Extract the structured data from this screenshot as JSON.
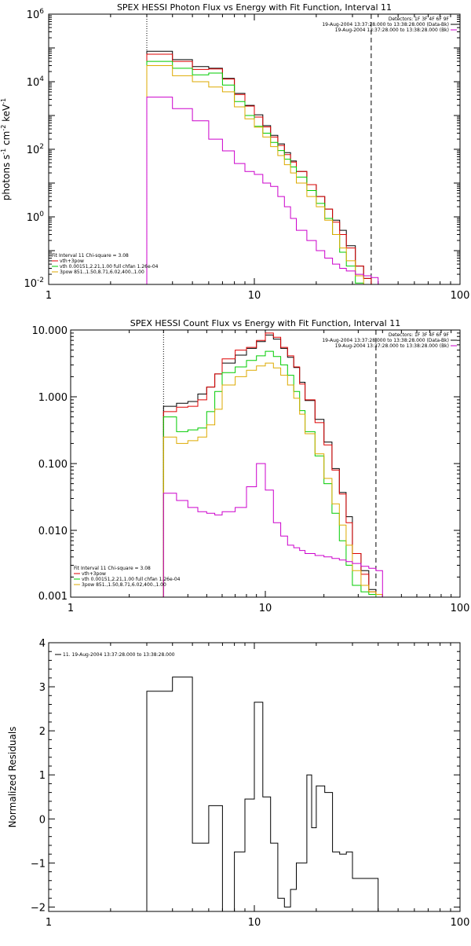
{
  "chart_data": [
    {
      "type": "line",
      "title": "SPEX HESSI Photon Flux vs Energy with Fit Function, Interval 11",
      "ylabel": "photons s",
      "ylabel_parts": [
        "photons s",
        "-1",
        " cm",
        "-2",
        " keV",
        "-1"
      ],
      "xscale": "log",
      "yscale": "log",
      "xlim": [
        1,
        100
      ],
      "ylim": [
        0.01,
        1000000
      ],
      "x_ticks": [
        "1",
        "10",
        "100"
      ],
      "y_ticks": [
        {
          "value": 0.01,
          "base": "10",
          "exp": "-2"
        },
        {
          "value": 1,
          "base": "10",
          "exp": "0"
        },
        {
          "value": 100,
          "base": "10",
          "exp": "2"
        },
        {
          "value": 10000,
          "base": "10",
          "exp": "4"
        },
        {
          "value": 1000000,
          "base": "10",
          "exp": "6"
        }
      ],
      "vlines": [
        {
          "x": 3.0,
          "style": "dotted"
        },
        {
          "x": 37.0,
          "style": "dashed"
        }
      ],
      "legend_top_right": [
        {
          "text": "Detectors: 1F 3F 4F 6F 9F",
          "color": "#000000"
        },
        {
          "text": "19-Aug-2004 13:37:28.000 to 13:38:28.000 (Data-Bk)",
          "color": "#000000"
        },
        {
          "text": "19-Aug-2004 13:37:28.000 to 13:38:28.000 (Bk)",
          "color": "#cc00cc"
        }
      ],
      "legend_bottom_left": [
        {
          "text": "Fit Interval 11    Chi-square = 3.08",
          "color": "#000000"
        },
        {
          "text": "vth+3pow",
          "color": "#dd0000"
        },
        {
          "text": "vth 0.00151,2.21,1.00  full chfan 1.26e-04",
          "color": "#00cc00"
        },
        {
          "text": "3pow 851.,1.50,8.71,6.02,400.,1.00",
          "color": "#ddaa00"
        }
      ],
      "bin_edges": [
        3.0,
        3.5,
        4.0,
        4.5,
        5.0,
        5.5,
        6.0,
        7.0,
        8.0,
        9.0,
        10.0,
        11.0,
        12.0,
        13.0,
        14.0,
        15.0,
        16.0,
        18.0,
        20.0,
        22.0,
        24.0,
        26.0,
        28.0,
        31.0,
        34.0,
        37.0,
        40.0
      ],
      "series": [
        {
          "name": "Data-Bk",
          "color": "#000000",
          "values": [
            80000,
            80000,
            45000,
            45000,
            28000,
            28000,
            25000,
            12500,
            4500,
            2000,
            1050,
            500,
            260,
            145,
            80,
            45,
            22,
            9,
            4,
            1.7,
            0.8,
            0.4,
            0.14,
            0.035,
            0.015,
            0.007
          ]
        },
        {
          "name": "vth+3pow",
          "color": "#dd0000",
          "values": [
            65000,
            65000,
            40000,
            40000,
            23000,
            23000,
            24000,
            12000,
            4200,
            1900,
            900,
            460,
            230,
            130,
            70,
            42,
            22,
            9,
            4,
            1.7,
            0.7,
            0.3,
            0.12,
            0.035,
            0.015,
            0.007
          ]
        },
        {
          "name": "vth",
          "color": "#00cc00",
          "values": [
            40000,
            40000,
            25000,
            25000,
            16000,
            16000,
            18000,
            8000,
            2600,
            1000,
            480,
            300,
            160,
            92,
            51,
            30,
            15,
            6,
            2.5,
            0.9,
            0.3,
            0.09,
            0.035,
            0.011,
            0.01,
            0.009
          ]
        },
        {
          "name": "3pow",
          "color": "#ddaa00",
          "values": [
            30000,
            30000,
            15000,
            15000,
            10000,
            10000,
            7000,
            5000,
            1800,
            800,
            450,
            230,
            120,
            65,
            35,
            20,
            10,
            4,
            2,
            0.8,
            0.3,
            0.12,
            0.05,
            0.018,
            0.009,
            0.005
          ]
        },
        {
          "name": "Bk",
          "color": "#cc00cc",
          "values": [
            3500,
            3500,
            1600,
            1600,
            700,
            700,
            200,
            90,
            38,
            22,
            18,
            10,
            8,
            4,
            2,
            0.9,
            0.4,
            0.2,
            0.1,
            0.06,
            0.04,
            0.03,
            0.025,
            0.02,
            0.018,
            0.016
          ]
        }
      ]
    },
    {
      "type": "line",
      "title": "SPEX HESSI Count Flux vs Energy with Fit Function, Interval 11",
      "ylabel": "",
      "xscale": "log",
      "yscale": "log",
      "xlim": [
        1,
        100
      ],
      "ylim": [
        0.001,
        10
      ],
      "x_ticks": [
        "1",
        "10",
        "100"
      ],
      "y_ticks": [
        {
          "value": 0.001,
          "label": "0.001"
        },
        {
          "value": 0.01,
          "label": "0.010"
        },
        {
          "value": 0.1,
          "label": "0.100"
        },
        {
          "value": 1,
          "label": "1.000"
        },
        {
          "value": 10,
          "label": "10.000"
        }
      ],
      "vlines": [
        {
          "x": 3.0,
          "style": "dotted"
        },
        {
          "x": 37.0,
          "style": "dashed"
        }
      ],
      "legend_top_right": [
        {
          "text": "Detectors: 1F 3F 4F 6F 9F",
          "color": "#000000"
        },
        {
          "text": "19-Aug-2004 13:37:28.000 to 13:38:28.000 (Data-Bk)",
          "color": "#000000"
        },
        {
          "text": "19-Aug-2004 13:37:28.000 to 13:38:28.000 (Bk)",
          "color": "#cc00cc"
        }
      ],
      "legend_bottom_left": [
        {
          "text": "Fit Interval 11    Chi-square = 3.08",
          "color": "#000000"
        },
        {
          "text": "vth+3pow",
          "color": "#dd0000"
        },
        {
          "text": "vth 0.00151,2.21,1.00  full chfan 1.26e-04",
          "color": "#00cc00"
        },
        {
          "text": "3pow 851.,1.50,8.71,6.02,400.,1.00",
          "color": "#ddaa00"
        }
      ],
      "bin_edges": [
        3.0,
        3.5,
        4.0,
        4.5,
        5.0,
        5.5,
        6.0,
        7.0,
        8.0,
        9.0,
        10.0,
        11.0,
        12.0,
        13.0,
        14.0,
        15.0,
        16.0,
        18.0,
        20.0,
        22.0,
        24.0,
        26.0,
        28.0,
        31.0,
        34.0,
        37.0,
        40.0
      ],
      "series": [
        {
          "name": "Data-Bk",
          "color": "#000000",
          "values": [
            0.72,
            0.8,
            0.85,
            1.1,
            1.4,
            2.2,
            3.2,
            4.2,
            5.3,
            6.7,
            8.4,
            7.3,
            5.3,
            3.9,
            2.75,
            1.65,
            0.88,
            0.46,
            0.21,
            0.084,
            0.037,
            0.016,
            0.0045,
            0.0025,
            0.0013,
            0.0011
          ]
        },
        {
          "name": "vth+3pow",
          "color": "#dd0000",
          "values": [
            0.6,
            0.7,
            0.72,
            0.9,
            1.4,
            2.2,
            3.7,
            5.0,
            5.5,
            7.0,
            9.0,
            7.8,
            5.5,
            4.1,
            2.8,
            1.55,
            0.9,
            0.41,
            0.19,
            0.08,
            0.035,
            0.013,
            0.0045,
            0.0022,
            0.0012,
            0.0011
          ]
        },
        {
          "name": "vth",
          "color": "#00cc00",
          "values": [
            0.5,
            0.3,
            0.32,
            0.34,
            0.6,
            1.2,
            2.3,
            2.8,
            3.5,
            4.1,
            4.8,
            4.0,
            3.0,
            2.1,
            1.2,
            0.62,
            0.3,
            0.13,
            0.05,
            0.018,
            0.007,
            0.003,
            0.0015,
            0.0012,
            0.0011,
            0.001
          ]
        },
        {
          "name": "3pow",
          "color": "#ddaa00",
          "values": [
            0.25,
            0.2,
            0.22,
            0.25,
            0.38,
            0.65,
            1.5,
            2.0,
            2.5,
            2.9,
            3.2,
            2.7,
            2.1,
            1.5,
            0.95,
            0.55,
            0.28,
            0.14,
            0.06,
            0.025,
            0.012,
            0.006,
            0.0025,
            0.0015,
            0.0012,
            0.0011
          ]
        },
        {
          "name": "Bk",
          "color": "#cc00cc",
          "values": [
            0.036,
            0.028,
            0.022,
            0.019,
            0.018,
            0.017,
            0.019,
            0.022,
            0.045,
            0.1,
            0.04,
            0.013,
            0.0082,
            0.006,
            0.0055,
            0.005,
            0.0045,
            0.0042,
            0.004,
            0.0038,
            0.0036,
            0.0034,
            0.0032,
            0.0029,
            0.0027,
            0.0025
          ]
        }
      ]
    },
    {
      "type": "line",
      "title": "",
      "ylabel": "Normalized Residuals",
      "xscale": "log",
      "yscale": "linear",
      "xlim": [
        1,
        100
      ],
      "ylim": [
        -2.1,
        4
      ],
      "x_ticks": [
        "1",
        "10",
        "100"
      ],
      "y_ticks": [
        {
          "value": -2,
          "label": "−2"
        },
        {
          "value": -1,
          "label": "−1"
        },
        {
          "value": 0,
          "label": "0"
        },
        {
          "value": 1,
          "label": "1"
        },
        {
          "value": 2,
          "label": "2"
        },
        {
          "value": 3,
          "label": "3"
        },
        {
          "value": 4,
          "label": "4"
        }
      ],
      "legend_top_left": [
        {
          "text": "11. 19-Aug-2004 13:37:28.000 to 13:38:28.000",
          "color": "#000000"
        }
      ],
      "bin_edges": [
        3.0,
        4.0,
        4.5,
        5.0,
        6.0,
        7.0,
        7.5,
        8.0,
        9.0,
        10.0,
        11.0,
        12.0,
        13.0,
        14.0,
        15.0,
        16.0,
        18.0,
        19.0,
        20.0,
        22.0,
        24.0,
        26.0,
        28.0,
        30.0,
        32.0,
        36.0,
        40.0
      ],
      "series": [
        {
          "name": "residuals",
          "color": "#000000",
          "values": [
            2.9,
            3.22,
            3.22,
            -0.55,
            0.3,
            -2.1,
            -2.1,
            -0.75,
            0.45,
            2.65,
            0.5,
            -0.55,
            -1.8,
            -2.0,
            -1.6,
            -1.0,
            1.0,
            -0.2,
            0.75,
            0.6,
            -0.75,
            -0.8,
            -0.75,
            -1.35,
            -1.35,
            -1.35
          ]
        }
      ]
    }
  ]
}
